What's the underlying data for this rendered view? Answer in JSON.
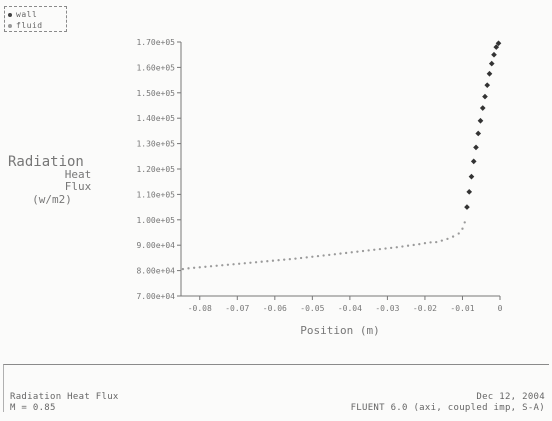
{
  "legend": {
    "items": [
      "wall",
      "fluid"
    ]
  },
  "footer": {
    "left_lines": [
      "Radiation Heat Flux",
      "M = 0.85"
    ],
    "right_lines": [
      "Dec 12, 2004",
      "FLUENT 6.0 (axi, coupled imp, S-A)"
    ]
  },
  "chart_data": {
    "type": "scatter",
    "title": "",
    "xlabel": "Position (m)",
    "ylabel_lines": [
      "Radiation",
      "Heat",
      "Flux",
      "(w/m2)"
    ],
    "xlim": [
      -0.085,
      0
    ],
    "ylim": [
      70000,
      170000
    ],
    "xticks": [
      -0.08,
      -0.07,
      -0.06,
      -0.05,
      -0.04,
      -0.03,
      -0.02,
      -0.01,
      0
    ],
    "xtick_labels": [
      "-0.08",
      "-0.07",
      "-0.06",
      "-0.05",
      "-0.04",
      "-0.03",
      "-0.02",
      "-0.01",
      "0"
    ],
    "yticks": [
      70000,
      80000,
      90000,
      100000,
      110000,
      120000,
      130000,
      140000,
      150000,
      160000,
      170000
    ],
    "ytick_labels": [
      "7.00e+04",
      "8.00e+04",
      "9.00e+04",
      "1.00e+05",
      "1.10e+05",
      "1.20e+05",
      "1.30e+05",
      "1.40e+05",
      "1.50e+05",
      "1.60e+05",
      "1.70e+05"
    ],
    "series": [
      {
        "name": "wall",
        "marker": "diamond",
        "color": "#333333",
        "x": [
          -0.0088,
          -0.0082,
          -0.0076,
          -0.007,
          -0.0064,
          -0.0058,
          -0.0052,
          -0.0046,
          -0.004,
          -0.0034,
          -0.0028,
          -0.0022,
          -0.0016,
          -0.001,
          -0.0004
        ],
        "y": [
          105000,
          111000,
          117000,
          123000,
          128500,
          134000,
          139000,
          144000,
          148500,
          153000,
          157500,
          161500,
          165000,
          168000,
          169500
        ]
      },
      {
        "name": "fluid",
        "marker": "dot",
        "color": "#9a9a9a",
        "x": [
          -0.0845,
          -0.083,
          -0.0815,
          -0.08,
          -0.0785,
          -0.077,
          -0.0755,
          -0.074,
          -0.0725,
          -0.071,
          -0.0695,
          -0.068,
          -0.0665,
          -0.065,
          -0.0635,
          -0.062,
          -0.0605,
          -0.059,
          -0.0575,
          -0.056,
          -0.0545,
          -0.053,
          -0.0515,
          -0.05,
          -0.0485,
          -0.047,
          -0.0455,
          -0.044,
          -0.0425,
          -0.041,
          -0.0395,
          -0.038,
          -0.0365,
          -0.035,
          -0.0335,
          -0.032,
          -0.0305,
          -0.029,
          -0.0275,
          -0.026,
          -0.0245,
          -0.023,
          -0.0215,
          -0.02,
          -0.0185,
          -0.017,
          -0.0155,
          -0.014,
          -0.0125,
          -0.011,
          -0.01,
          -0.0094
        ],
        "y": [
          80600,
          80900,
          81100,
          81300,
          81500,
          81700,
          81900,
          82100,
          82300,
          82500,
          82700,
          82900,
          83100,
          83300,
          83500,
          83700,
          83900,
          84100,
          84300,
          84500,
          84700,
          84950,
          85200,
          85450,
          85700,
          85950,
          86200,
          86450,
          86700,
          86950,
          87200,
          87450,
          87700,
          87950,
          88200,
          88450,
          88700,
          88950,
          89200,
          89500,
          89800,
          90100,
          90400,
          90800,
          91100,
          91200,
          91800,
          92500,
          93400,
          94600,
          96500,
          99000
        ]
      }
    ],
    "grid": false,
    "legend_position": "top-left"
  }
}
